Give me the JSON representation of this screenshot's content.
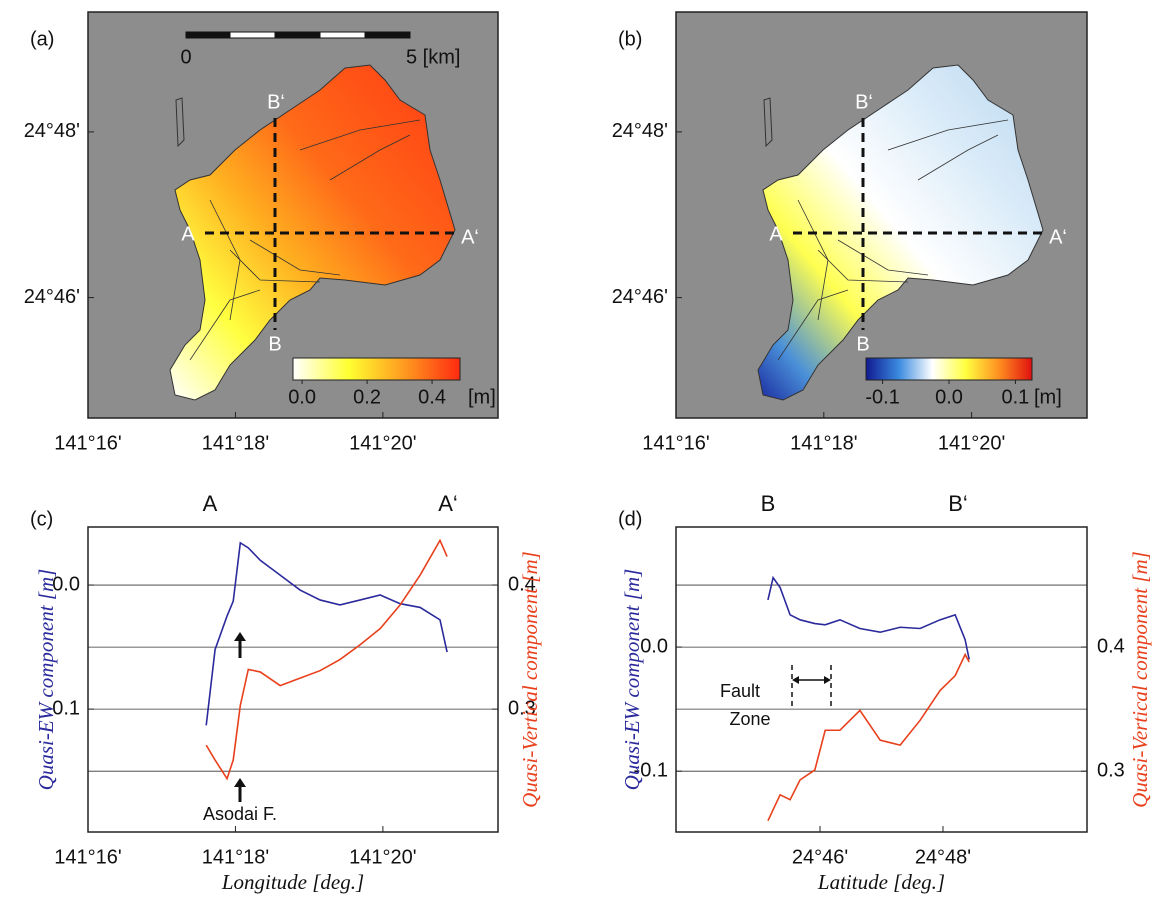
{
  "chart_data": [
    {
      "type": "map",
      "panel": "(a)",
      "xlim": [
        141.2667,
        141.3593
      ],
      "ylim": [
        24.7425,
        24.8241
      ],
      "xticks": [
        {
          "value": 141.2667,
          "label": "141°16'"
        },
        {
          "value": 141.3,
          "label": "141°18'"
        },
        {
          "value": 141.3333,
          "label": "141°20'"
        }
      ],
      "yticks": [
        {
          "value": 24.8,
          "label": "24°48'"
        },
        {
          "value": 24.7667,
          "label": "24°46'"
        }
      ],
      "scalebar": [
        "0",
        "5 [km]"
      ],
      "annotations": [
        "A",
        "A‘",
        "B‘",
        "B"
      ],
      "colorbar": {
        "clim": [
          -0.028,
          0.486
        ],
        "ticks": [
          {
            "value": 0,
            "label": "0.0"
          },
          0.2,
          0.4
        ],
        "unit": "[m]",
        "colors": [
          "#ffffff",
          "#ffff30",
          "#ff9a20",
          "#ff2a10"
        ]
      }
    },
    {
      "type": "map",
      "panel": "(b)",
      "xlim": [
        141.2667,
        141.3593
      ],
      "ylim": [
        24.7425,
        24.8241
      ],
      "xticks": [
        {
          "value": 141.2667,
          "label": "141°16'"
        },
        {
          "value": 141.3,
          "label": "141°18'"
        },
        {
          "value": 141.3333,
          "label": "141°20'"
        }
      ],
      "yticks": [
        {
          "value": 24.8,
          "label": "24°48'"
        },
        {
          "value": 24.7667,
          "label": "24°46'"
        }
      ],
      "annotations": [
        "A",
        "A‘",
        "B‘",
        "B"
      ],
      "colorbar": {
        "clim": [
          -0.125,
          0.125
        ],
        "ticks": [
          -0.1,
          {
            "value": 0,
            "label": "0.0"
          },
          0.1
        ],
        "unit": "[m]",
        "colors": [
          "#101a90",
          "#3c8ce0",
          "#ffffff",
          "#ffff40",
          "#ff9020",
          "#e01010"
        ]
      }
    },
    {
      "type": "line",
      "panel": "(c)",
      "xlabel": "Longitude [deg.]",
      "ylabel": "Quasi-EW component [m]",
      "y2label": "Quasi-Vertical component [m]",
      "annotations": [
        "A",
        "A‘",
        "Asodai F."
      ],
      "xlim": [
        141.2667,
        141.3593
      ],
      "ylim": [
        -0.199,
        0.0468
      ],
      "y2lim": [
        0.201,
        0.4468
      ],
      "xticks": [
        {
          "value": 141.2667,
          "label": "141°16'"
        },
        {
          "value": 141.3,
          "label": "141°18'"
        },
        {
          "value": 141.3333,
          "label": "141°20'"
        }
      ],
      "yticks": [
        {
          "value": 0,
          "label": "0.0"
        },
        -0.1
      ],
      "y2ticks": [
        0.4,
        0.3
      ],
      "ygrid": [
        0,
        -0.05,
        -0.1,
        -0.15
      ],
      "x": [
        141.2934,
        141.2954,
        141.2981,
        141.2995,
        141.3011,
        141.3029,
        141.3056,
        141.3101,
        141.3146,
        141.3191,
        141.3236,
        141.3282,
        141.3327,
        141.3372,
        141.3417,
        141.3462,
        141.3478
      ],
      "series": [
        {
          "color": "#2a2a9c",
          "values": [
            -0.113,
            -0.052,
            -0.025,
            -0.013,
            0.034,
            0.03,
            0.02,
            0.008,
            -0.004,
            -0.012,
            -0.016,
            -0.012,
            -0.008,
            -0.015,
            -0.018,
            -0.028,
            -0.054
          ]
        },
        {
          "color": "#e8401c",
          "axis": "y2",
          "values": [
            0.271,
            0.259,
            0.244,
            0.259,
            0.303,
            0.332,
            0.33,
            0.319,
            0.325,
            0.331,
            0.34,
            0.352,
            0.365,
            0.384,
            0.408,
            0.436,
            0.423
          ]
        }
      ]
    },
    {
      "type": "line",
      "panel": "(d)",
      "xlabel": "Latitude [deg.]",
      "ylabel": "Quasi-EW component [m]",
      "y2label": "Quasi-Vertical component [m]",
      "annotations": [
        "B",
        "B‘",
        "Fault",
        "Zone"
      ],
      "xlim": [
        24.7277,
        24.839
      ],
      "ylim": [
        -0.149,
        0.0968
      ],
      "y2lim": [
        0.251,
        0.4968
      ],
      "xticks": [
        {
          "value": 24.7667,
          "label": "24°46'"
        },
        {
          "value": 24.8,
          "label": "24°48'"
        }
      ],
      "yticks": [
        {
          "value": 0,
          "label": "0.0"
        },
        -0.1
      ],
      "y2ticks": [
        0.4,
        0.3
      ],
      "ygrid": [
        0.05,
        0,
        -0.05,
        -0.1
      ],
      "x": [
        24.7526,
        24.754,
        24.7559,
        24.7586,
        24.7613,
        24.7653,
        24.7681,
        24.7721,
        24.7775,
        24.783,
        24.7884,
        24.7938,
        24.7992,
        24.8033,
        24.806,
        24.8071
      ],
      "series": [
        {
          "color": "#2a2a9c",
          "values": [
            0.038,
            0.056,
            0.048,
            0.026,
            0.022,
            0.019,
            0.018,
            0.022,
            0.015,
            0.012,
            0.016,
            0.015,
            0.022,
            0.026,
            0.006,
            -0.01
          ]
        },
        {
          "color": "#e8401c",
          "axis": "y2",
          "values": [
            0.26,
            0.269,
            0.281,
            0.277,
            0.293,
            0.301,
            0.333,
            0.333,
            0.349,
            0.325,
            0.321,
            0.341,
            0.365,
            0.377,
            0.394,
            0.388
          ]
        }
      ]
    }
  ]
}
